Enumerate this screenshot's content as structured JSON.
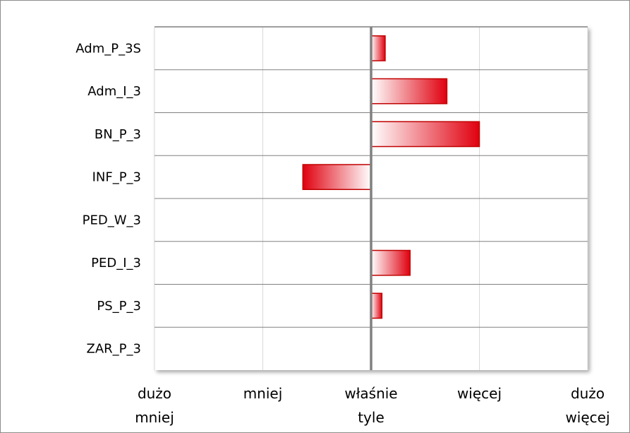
{
  "chart_data": {
    "type": "bar",
    "orientation": "horizontal",
    "categories": [
      "Adm_P_3S",
      "Adm_I_3",
      "BN_P_3",
      "INF_P_3",
      "PED_W_3",
      "PED_I_3",
      "PS_P_3",
      "ZAR_P_3"
    ],
    "values": [
      0.13,
      0.7,
      1.0,
      -0.63,
      0,
      0.36,
      0.1,
      0
    ],
    "xlim": [
      -2,
      2
    ],
    "x_ticks": [
      {
        "value": -2,
        "lines": [
          "dużo",
          "mniej"
        ]
      },
      {
        "value": -1,
        "lines": [
          "mniej"
        ]
      },
      {
        "value": 0,
        "lines": [
          "właśnie",
          "tyle"
        ]
      },
      {
        "value": 1,
        "lines": [
          "więcej"
        ]
      },
      {
        "value": 2,
        "lines": [
          "dużo",
          "więcej"
        ]
      }
    ],
    "grid": true,
    "legend": "none",
    "colors": {
      "bar_fill_strong": "#e0000f",
      "bar_fill_light": "#ffffff",
      "bar_border": "#c00000",
      "zero_line": "#808080",
      "grid_line": "#d9d9d9",
      "row_line": "#808080"
    }
  }
}
